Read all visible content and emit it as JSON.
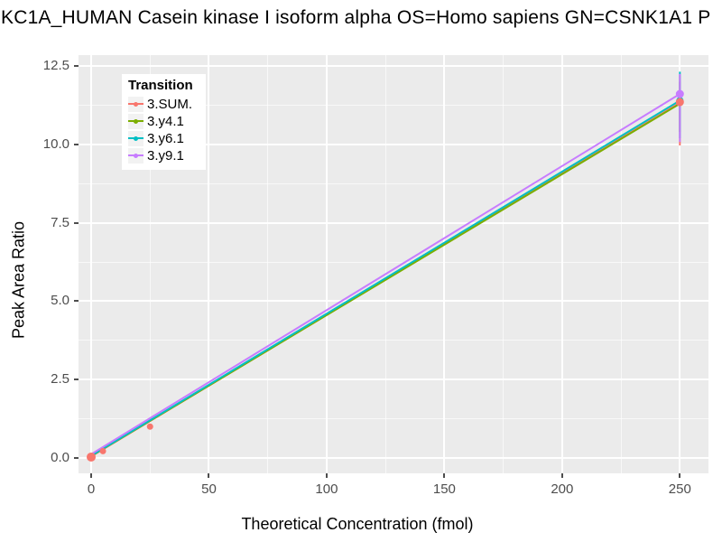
{
  "chart_data": {
    "type": "line",
    "title": "KC1A_HUMAN Casein kinase I isoform alpha OS=Homo sapiens GN=CSNK1A1 P",
    "xlabel": "Theoretical Concentration (fmol)",
    "ylabel": "Peak Area Ratio",
    "panel_background": "#EBEBEB",
    "gridline_color": "#FFFFFF",
    "tick_label_color": "#4D4D4D",
    "grid": true,
    "legend": {
      "title": "Transition",
      "position": "top-left-inside",
      "entries": [
        "3.SUM.",
        "3.y4.1",
        "3.y6.1",
        "3.y9.1"
      ]
    },
    "x_axis": {
      "tick_labels": [
        "0",
        "50",
        "100",
        "150",
        "200",
        "250"
      ],
      "tick_values": [
        0,
        50,
        100,
        150,
        200,
        250
      ],
      "minor_ticks": [
        25,
        75,
        125,
        175,
        225
      ],
      "domain": [
        -5.37,
        262.14
      ]
    },
    "y_axis": {
      "tick_labels": [
        "0.0",
        "2.5",
        "5.0",
        "7.5",
        "10.0",
        "12.5"
      ],
      "tick_values": [
        0,
        2.5,
        5,
        7.5,
        10,
        12.5
      ],
      "minor_ticks": [
        1.25,
        3.75,
        6.25,
        8.75,
        11.25
      ],
      "domain": [
        -0.49,
        12.85
      ]
    },
    "series": [
      {
        "name": "3.SUM.",
        "color": "#F8766D",
        "line": {
          "x": [
            0,
            250
          ],
          "y": [
            0.05,
            11.33
          ]
        },
        "points": [
          [
            0,
            0.03,
            5
          ],
          [
            5,
            0.22,
            3.5
          ],
          [
            25,
            1.0,
            3.5
          ],
          [
            250,
            11.35,
            4.5
          ]
        ],
        "error_bar": {
          "x": 250,
          "ymin": 9.97,
          "ymax": 12.2
        }
      },
      {
        "name": "3.y4.1",
        "color": "#7CAE00",
        "line": {
          "x": [
            0,
            250
          ],
          "y": [
            0.06,
            11.3
          ]
        },
        "points": [
          [
            0,
            0.06,
            3
          ]
        ],
        "error_bar": {
          "x": 250,
          "ymin": 10.4,
          "ymax": 12.0
        }
      },
      {
        "name": "3.y6.1",
        "color": "#00BFC4",
        "line": {
          "x": [
            0,
            250
          ],
          "y": [
            0.07,
            11.4
          ]
        },
        "points": [
          [
            0,
            0.08,
            3
          ],
          [
            250,
            11.4,
            4
          ]
        ],
        "error_bar": {
          "x": 250,
          "ymin": 10.2,
          "ymax": 12.32
        }
      },
      {
        "name": "3.y9.1",
        "color": "#C77CFF",
        "line": {
          "x": [
            0,
            250
          ],
          "y": [
            0.12,
            11.61
          ]
        },
        "points": [
          [
            250,
            11.61,
            4.5
          ]
        ],
        "error_bar": {
          "x": 250,
          "ymin": 10.08,
          "ymax": 12.25
        }
      }
    ],
    "point_draw_order": [
      "3.y4.1",
      "3.y6.1",
      "3.SUM.",
      "3.y9.1"
    ]
  }
}
